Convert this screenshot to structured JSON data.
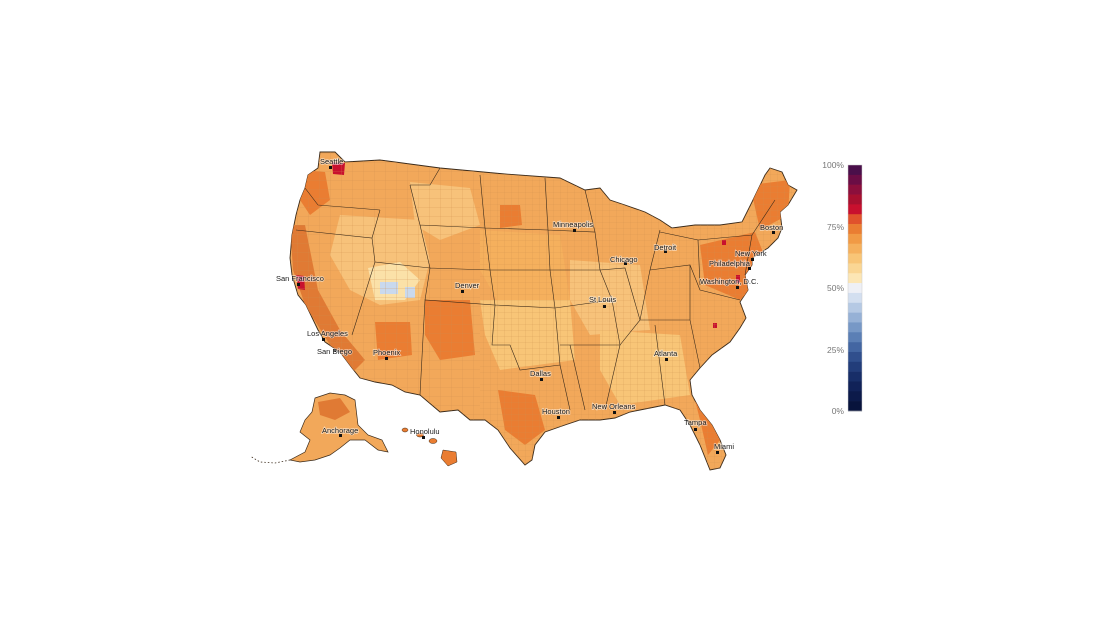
{
  "colors": {
    "land_base": "#f2a85a",
    "border": "#3a2a1a",
    "county_line": "#c98a48",
    "dark_orange": "#e07a34",
    "light_orange": "#f7c27a",
    "pale": "#fbe1a8",
    "red": "#c8102e",
    "light_blue": "#c9d9ee"
  },
  "legend": {
    "ticks": [
      "100%",
      "75%",
      "50%",
      "25%",
      "0%"
    ],
    "tick_values": [
      100,
      75,
      50,
      25,
      0
    ],
    "color_bins": [
      {
        "from": 96,
        "to": 100,
        "color": "#4a0f4a"
      },
      {
        "from": 92,
        "to": 96,
        "color": "#6b0d45"
      },
      {
        "from": 88,
        "to": 92,
        "color": "#8c0f3c"
      },
      {
        "from": 84,
        "to": 88,
        "color": "#a8102f"
      },
      {
        "from": 80,
        "to": 84,
        "color": "#c8102e"
      },
      {
        "from": 76,
        "to": 80,
        "color": "#e0522c"
      },
      {
        "from": 72,
        "to": 76,
        "color": "#ea7d32"
      },
      {
        "from": 68,
        "to": 72,
        "color": "#f19a45"
      },
      {
        "from": 64,
        "to": 68,
        "color": "#f5b05d"
      },
      {
        "from": 60,
        "to": 64,
        "color": "#f8c577"
      },
      {
        "from": 56,
        "to": 60,
        "color": "#fad694"
      },
      {
        "from": 52,
        "to": 56,
        "color": "#fce6b5"
      },
      {
        "from": 48,
        "to": 52,
        "color": "#eef0f6"
      },
      {
        "from": 44,
        "to": 48,
        "color": "#d3dff0"
      },
      {
        "from": 40,
        "to": 44,
        "color": "#b5c9e4"
      },
      {
        "from": 36,
        "to": 40,
        "color": "#96b1d6"
      },
      {
        "from": 32,
        "to": 36,
        "color": "#7798c6"
      },
      {
        "from": 28,
        "to": 32,
        "color": "#5b7fb5"
      },
      {
        "from": 24,
        "to": 28,
        "color": "#4366a2"
      },
      {
        "from": 20,
        "to": 24,
        "color": "#304f8d"
      },
      {
        "from": 16,
        "to": 20,
        "color": "#223d7a"
      },
      {
        "from": 12,
        "to": 16,
        "color": "#182e68"
      },
      {
        "from": 8,
        "to": 12,
        "color": "#112258"
      },
      {
        "from": 4,
        "to": 8,
        "color": "#0c1a4a"
      },
      {
        "from": 0,
        "to": 4,
        "color": "#08133c"
      }
    ]
  },
  "cities": [
    {
      "name": "Seattle"
    },
    {
      "name": "San Francisco"
    },
    {
      "name": "Los Angeles"
    },
    {
      "name": "San Diego"
    },
    {
      "name": "Phoenix"
    },
    {
      "name": "Denver"
    },
    {
      "name": "Minneapolis"
    },
    {
      "name": "Chicago"
    },
    {
      "name": "Detroit"
    },
    {
      "name": "St Louis"
    },
    {
      "name": "Dallas"
    },
    {
      "name": "Houston"
    },
    {
      "name": "New Orleans"
    },
    {
      "name": "Atlanta"
    },
    {
      "name": "Tampa"
    },
    {
      "name": "Miami"
    },
    {
      "name": "Washington, D.C."
    },
    {
      "name": "Philadelphia"
    },
    {
      "name": "New York"
    },
    {
      "name": "Boston"
    },
    {
      "name": "Anchorage"
    },
    {
      "name": "Honolulu"
    }
  ]
}
